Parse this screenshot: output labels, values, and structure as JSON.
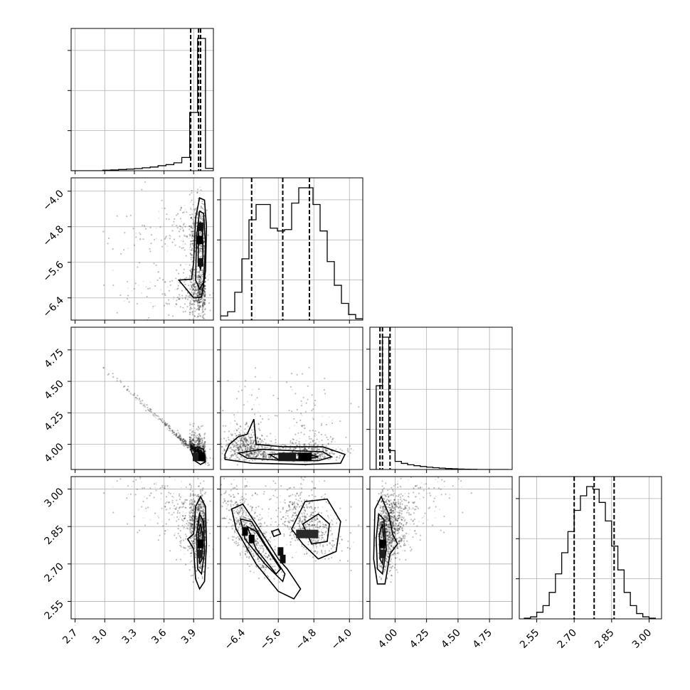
{
  "chart_data": {
    "type": "corner",
    "parameters": [
      {
        "range": [
          2.66,
          4.1
        ],
        "ticks": [
          {
            "value": 2.7,
            "label": "2.7"
          },
          {
            "value": 3.0,
            "label": "3.0"
          },
          {
            "value": 3.3,
            "label": "3.3"
          },
          {
            "value": 3.6,
            "label": "3.6"
          },
          {
            "value": 3.9,
            "label": "3.9"
          }
        ],
        "histogram": {
          "edges": [
            2.66,
            2.74,
            2.82,
            2.9,
            2.98,
            3.06,
            3.14,
            3.22,
            3.3,
            3.38,
            3.46,
            3.54,
            3.62,
            3.7,
            3.78,
            3.86,
            3.94,
            4.02,
            4.1
          ],
          "counts": [
            0,
            0,
            0,
            0,
            0.004,
            0.006,
            0.009,
            0.012,
            0.016,
            0.022,
            0.028,
            0.038,
            0.046,
            0.06,
            0.1,
            0.44,
            1.0,
            0.018
          ]
        },
        "quantiles": [
          3.87,
          3.95,
          3.97
        ]
      },
      {
        "range": [
          -6.9,
          -3.7
        ],
        "ticks": [
          {
            "value": -6.4,
            "label": "−6.4"
          },
          {
            "value": -5.6,
            "label": "−5.6"
          },
          {
            "value": -4.8,
            "label": "−4.8"
          },
          {
            "value": -4.0,
            "label": "−4.0"
          }
        ],
        "histogram": {
          "edges": [
            -6.9,
            -6.74,
            -6.58,
            -6.42,
            -6.26,
            -6.1,
            -5.94,
            -5.78,
            -5.62,
            -5.46,
            -5.3,
            -5.14,
            -4.98,
            -4.82,
            -4.66,
            -4.5,
            -4.34,
            -4.18,
            -4.02,
            -3.86,
            -3.7
          ],
          "counts": [
            0.03,
            0.06,
            0.2,
            0.44,
            0.72,
            0.83,
            0.83,
            0.66,
            0.64,
            0.65,
            0.84,
            0.95,
            0.95,
            0.83,
            0.64,
            0.42,
            0.25,
            0.12,
            0.04,
            0.01
          ]
        },
        "quantiles": [
          -6.2,
          -5.5,
          -4.9
        ]
      },
      {
        "range": [
          3.8,
          4.93
        ],
        "ticks": [
          {
            "value": 4.0,
            "label": "4.00"
          },
          {
            "value": 4.25,
            "label": "4.25"
          },
          {
            "value": 4.5,
            "label": "4.50"
          },
          {
            "value": 4.75,
            "label": "4.75"
          }
        ],
        "histogram": {
          "edges": [
            3.8,
            3.85,
            3.9,
            3.95,
            4.0,
            4.05,
            4.1,
            4.15,
            4.2,
            4.25,
            4.3,
            4.35,
            4.4,
            4.45,
            4.5,
            4.55,
            4.6,
            4.65,
            4.7,
            4.75,
            4.8,
            4.85,
            4.9
          ],
          "counts": [
            0.0,
            0.62,
            0.98,
            0.14,
            0.06,
            0.045,
            0.035,
            0.028,
            0.022,
            0.017,
            0.013,
            0.01,
            0.007,
            0.005,
            0.003,
            0.002,
            0.001,
            0,
            0,
            0,
            0,
            0
          ]
        },
        "quantiles": [
          3.88,
          3.9,
          3.96
        ]
      },
      {
        "range": [
          2.48,
          3.05
        ],
        "ticks": [
          {
            "value": 2.55,
            "label": "2.55"
          },
          {
            "value": 2.7,
            "label": "2.70"
          },
          {
            "value": 2.85,
            "label": "2.85"
          },
          {
            "value": 3.0,
            "label": "3.00"
          }
        ],
        "histogram": {
          "edges": [
            2.5,
            2.525,
            2.55,
            2.575,
            2.6,
            2.625,
            2.65,
            2.675,
            2.7,
            2.725,
            2.75,
            2.775,
            2.8,
            2.825,
            2.85,
            2.875,
            2.9,
            2.925,
            2.95,
            2.975,
            3.0,
            3.025
          ],
          "counts": [
            0.005,
            0.015,
            0.05,
            0.1,
            0.2,
            0.34,
            0.5,
            0.66,
            0.82,
            0.93,
            1.0,
            0.98,
            0.88,
            0.74,
            0.55,
            0.37,
            0.2,
            0.1,
            0.04,
            0.015,
            0.005
          ]
        },
        "quantiles": [
          2.7,
          2.78,
          2.86
        ]
      }
    ],
    "pairs": [
      {
        "x": 0,
        "y": 1,
        "mode_density": [
          {
            "x": 3.96,
            "y": -5.1,
            "d": 1.0,
            "r": 0.015
          },
          {
            "x": 3.97,
            "y": -4.8,
            "d": 0.7,
            "r": 0.02
          },
          {
            "x": 3.97,
            "y": -5.6,
            "d": 0.7,
            "r": 0.02
          }
        ],
        "contours": [
          [
            [
              3.75,
              -6.0
            ],
            [
              3.88,
              -5.98
            ],
            [
              3.9,
              -5.6
            ],
            [
              3.92,
              -4.6
            ],
            [
              3.96,
              -4.15
            ],
            [
              4.01,
              -4.2
            ],
            [
              4.03,
              -4.8
            ],
            [
              4.02,
              -5.8
            ],
            [
              3.98,
              -6.38
            ],
            [
              3.9,
              -6.4
            ],
            [
              3.75,
              -6.0
            ]
          ],
          [
            [
              3.92,
              -6.0
            ],
            [
              3.93,
              -5.0
            ],
            [
              3.96,
              -4.45
            ],
            [
              4.0,
              -4.5
            ],
            [
              4.02,
              -5.2
            ],
            [
              4.0,
              -6.05
            ],
            [
              3.96,
              -6.2
            ],
            [
              3.92,
              -6.0
            ]
          ],
          [
            [
              3.945,
              -5.6
            ],
            [
              3.95,
              -4.9
            ],
            [
              3.97,
              -4.7
            ],
            [
              3.99,
              -4.85
            ],
            [
              3.995,
              -5.5
            ],
            [
              3.97,
              -5.75
            ],
            [
              3.945,
              -5.6
            ]
          ]
        ]
      },
      {
        "x": 0,
        "y": 2,
        "mode_density": [
          {
            "x": 3.97,
            "y": 3.9,
            "d": 1.0,
            "r": 0.015
          },
          {
            "x": 3.92,
            "y": 3.9,
            "d": 0.5,
            "r": 0.02
          }
        ],
        "contours": [
          [
            [
              3.87,
              3.96
            ],
            [
              3.94,
              3.98
            ],
            [
              4.0,
              3.96
            ],
            [
              4.02,
              3.86
            ],
            [
              3.97,
              3.84
            ],
            [
              3.91,
              3.87
            ],
            [
              3.87,
              3.96
            ]
          ],
          [
            [
              3.91,
              3.94
            ],
            [
              3.97,
              3.95
            ],
            [
              4.0,
              3.92
            ],
            [
              3.99,
              3.87
            ],
            [
              3.93,
              3.88
            ],
            [
              3.91,
              3.94
            ]
          ]
        ]
      },
      {
        "x": 1,
        "y": 2,
        "mode_density": [
          {
            "x": -5.0,
            "y": 3.9,
            "d": 1.0,
            "r": 0.15
          },
          {
            "x": -5.4,
            "y": 3.9,
            "d": 0.6,
            "r": 0.2
          }
        ],
        "contours": [
          [
            [
              -6.8,
              3.92
            ],
            [
              -6.7,
              4.0
            ],
            [
              -6.5,
              4.06
            ],
            [
              -6.3,
              4.08
            ],
            [
              -6.15,
              4.2
            ],
            [
              -6.1,
              4.0
            ],
            [
              -5.5,
              3.98
            ],
            [
              -4.6,
              3.98
            ],
            [
              -4.1,
              3.92
            ],
            [
              -4.2,
              3.85
            ],
            [
              -5.0,
              3.84
            ],
            [
              -6.2,
              3.85
            ],
            [
              -6.8,
              3.88
            ],
            [
              -6.8,
              3.92
            ]
          ],
          [
            [
              -6.5,
              3.93
            ],
            [
              -6.0,
              3.96
            ],
            [
              -5.3,
              3.95
            ],
            [
              -4.6,
              3.94
            ],
            [
              -4.4,
              3.9
            ],
            [
              -4.7,
              3.87
            ],
            [
              -5.4,
              3.87
            ],
            [
              -6.3,
              3.89
            ],
            [
              -6.5,
              3.93
            ]
          ],
          [
            [
              -5.8,
              3.92
            ],
            [
              -5.0,
              3.93
            ],
            [
              -4.7,
              3.9
            ],
            [
              -5.0,
              3.88
            ],
            [
              -5.6,
              3.88
            ],
            [
              -5.8,
              3.92
            ]
          ]
        ]
      },
      {
        "x": 0,
        "y": 3,
        "mode_density": [
          {
            "x": 3.97,
            "y": 2.78,
            "d": 1.0,
            "r": 0.015
          },
          {
            "x": 3.96,
            "y": 2.74,
            "d": 0.5,
            "r": 0.02
          }
        ],
        "contours": [
          [
            [
              3.84,
              2.8
            ],
            [
              3.9,
              2.82
            ],
            [
              3.92,
              2.93
            ],
            [
              3.97,
              2.97
            ],
            [
              4.02,
              2.93
            ],
            [
              4.03,
              2.78
            ],
            [
              4.01,
              2.63
            ],
            [
              3.96,
              2.6
            ],
            [
              3.92,
              2.64
            ],
            [
              3.9,
              2.76
            ],
            [
              3.84,
              2.8
            ]
          ],
          [
            [
              3.93,
              2.82
            ],
            [
              3.96,
              2.9
            ],
            [
              4.0,
              2.87
            ],
            [
              4.01,
              2.75
            ],
            [
              3.98,
              2.66
            ],
            [
              3.94,
              2.68
            ],
            [
              3.93,
              2.82
            ]
          ],
          [
            [
              3.95,
              2.83
            ],
            [
              3.97,
              2.86
            ],
            [
              3.99,
              2.82
            ],
            [
              3.985,
              2.72
            ],
            [
              3.96,
              2.7
            ],
            [
              3.95,
              2.83
            ]
          ]
        ]
      },
      {
        "x": 1,
        "y": 3,
        "mode_density": [
          {
            "x": -6.35,
            "y": 2.83,
            "d": 1.0,
            "r": 0.06
          },
          {
            "x": -6.2,
            "y": 2.8,
            "d": 1.0,
            "r": 0.06
          },
          {
            "x": -5.55,
            "y": 2.75,
            "d": 0.8,
            "r": 0.06
          },
          {
            "x": -5.5,
            "y": 2.72,
            "d": 0.8,
            "r": 0.06
          },
          {
            "x": -4.95,
            "y": 2.82,
            "d": 0.3,
            "r": 0.25
          }
        ],
        "contours": [
          [
            [
              -6.65,
              2.92
            ],
            [
              -6.4,
              2.94
            ],
            [
              -6.1,
              2.86
            ],
            [
              -5.6,
              2.72
            ],
            [
              -5.4,
              2.68
            ],
            [
              -5.1,
              2.6
            ],
            [
              -5.25,
              2.56
            ],
            [
              -5.6,
              2.59
            ],
            [
              -6.1,
              2.7
            ],
            [
              -6.55,
              2.84
            ],
            [
              -6.65,
              2.92
            ]
          ],
          [
            [
              -6.45,
              2.88
            ],
            [
              -6.2,
              2.87
            ],
            [
              -5.9,
              2.78
            ],
            [
              -5.45,
              2.66
            ],
            [
              -5.5,
              2.63
            ],
            [
              -5.9,
              2.7
            ],
            [
              -6.35,
              2.8
            ],
            [
              -6.45,
              2.88
            ]
          ],
          [
            [
              -6.3,
              2.85
            ],
            [
              -6.1,
              2.83
            ],
            [
              -5.7,
              2.72
            ],
            [
              -5.55,
              2.68
            ],
            [
              -5.65,
              2.66
            ],
            [
              -6.1,
              2.76
            ],
            [
              -6.3,
              2.85
            ]
          ],
          [
            [
              -5.3,
              2.84
            ],
            [
              -5.0,
              2.95
            ],
            [
              -4.5,
              2.96
            ],
            [
              -4.2,
              2.87
            ],
            [
              -4.3,
              2.75
            ],
            [
              -4.7,
              2.72
            ],
            [
              -5.05,
              2.78
            ],
            [
              -5.3,
              2.84
            ]
          ],
          [
            [
              -5.05,
              2.86
            ],
            [
              -4.7,
              2.9
            ],
            [
              -4.45,
              2.86
            ],
            [
              -4.5,
              2.79
            ],
            [
              -4.85,
              2.78
            ],
            [
              -5.05,
              2.86
            ]
          ],
          [
            [
              -5.75,
              2.83
            ],
            [
              -5.6,
              2.84
            ],
            [
              -5.55,
              2.82
            ],
            [
              -5.7,
              2.81
            ],
            [
              -5.75,
              2.83
            ]
          ]
        ]
      },
      {
        "x": 2,
        "y": 3,
        "mode_density": [
          {
            "x": 3.9,
            "y": 2.78,
            "d": 1.0,
            "r": 0.01
          },
          {
            "x": 3.9,
            "y": 2.74,
            "d": 0.5,
            "r": 0.015
          }
        ],
        "contours": [
          [
            [
              3.86,
              2.62
            ],
            [
              3.83,
              2.72
            ],
            [
              3.84,
              2.92
            ],
            [
              3.89,
              2.97
            ],
            [
              3.95,
              2.9
            ],
            [
              3.98,
              2.82
            ],
            [
              4.02,
              2.78
            ],
            [
              3.96,
              2.74
            ],
            [
              3.92,
              2.62
            ],
            [
              3.86,
              2.62
            ]
          ],
          [
            [
              3.86,
              2.68
            ],
            [
              3.85,
              2.8
            ],
            [
              3.87,
              2.9
            ],
            [
              3.91,
              2.88
            ],
            [
              3.93,
              2.76
            ],
            [
              3.9,
              2.66
            ],
            [
              3.86,
              2.68
            ]
          ],
          [
            [
              3.88,
              2.72
            ],
            [
              3.875,
              2.82
            ],
            [
              3.9,
              2.86
            ],
            [
              3.915,
              2.78
            ],
            [
              3.9,
              2.7
            ],
            [
              3.88,
              2.72
            ]
          ]
        ]
      }
    ]
  }
}
